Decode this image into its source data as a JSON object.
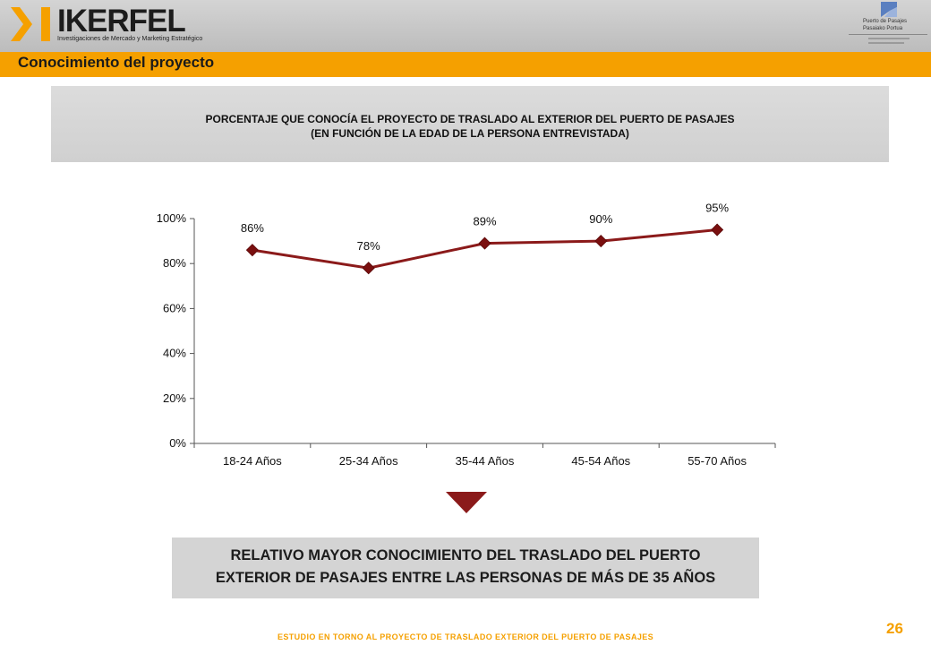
{
  "header": {
    "logo_text": "IKERFEL",
    "logo_subtitle": "Investigaciones de Mercado y Marketing Estratégico",
    "port_logo_line1": "Puerto de Pasajes",
    "port_logo_line2": "Pasaiako Portua"
  },
  "section": {
    "title": "Conocimiento del proyecto"
  },
  "chart_title": {
    "line1": "PORCENTAJE QUE CONOCÍA EL PROYECTO DE TRASLADO AL EXTERIOR DEL PUERTO DE PASAJES",
    "line2": "(EN FUNCIÓN DE LA EDAD DE LA PERSONA ENTREVISTADA)"
  },
  "chart_data": {
    "type": "line",
    "categories": [
      "18-24 Años",
      "25-34 Años",
      "35-44 Años",
      "45-54 Años",
      "55-70 Años"
    ],
    "values": [
      86,
      78,
      89,
      90,
      95
    ],
    "data_labels": [
      "86%",
      "78%",
      "89%",
      "90%",
      "95%"
    ],
    "yticks": [
      "0%",
      "20%",
      "40%",
      "60%",
      "80%",
      "100%"
    ],
    "ylim": [
      0,
      100
    ],
    "grid": false,
    "colors": {
      "line": "#8b1a1a",
      "marker": "#7a0f0f",
      "axis": "#555555"
    }
  },
  "conclusion": {
    "line1": "RELATIVO MAYOR CONOCIMIENTO DEL TRASLADO DEL PUERTO",
    "line2": "EXTERIOR DE PASAJES ENTRE LAS PERSONAS DE MÁS DE 35 AÑOS"
  },
  "footer": {
    "text": "ESTUDIO EN TORNO AL PROYECTO DE TRASLADO EXTERIOR DEL PUERTO DE PASAJES"
  },
  "page_number": "26",
  "colors": {
    "accent": "#f5a000",
    "header_gray": "#c8c8c8",
    "marker_dark_red": "#7a0f0f"
  }
}
